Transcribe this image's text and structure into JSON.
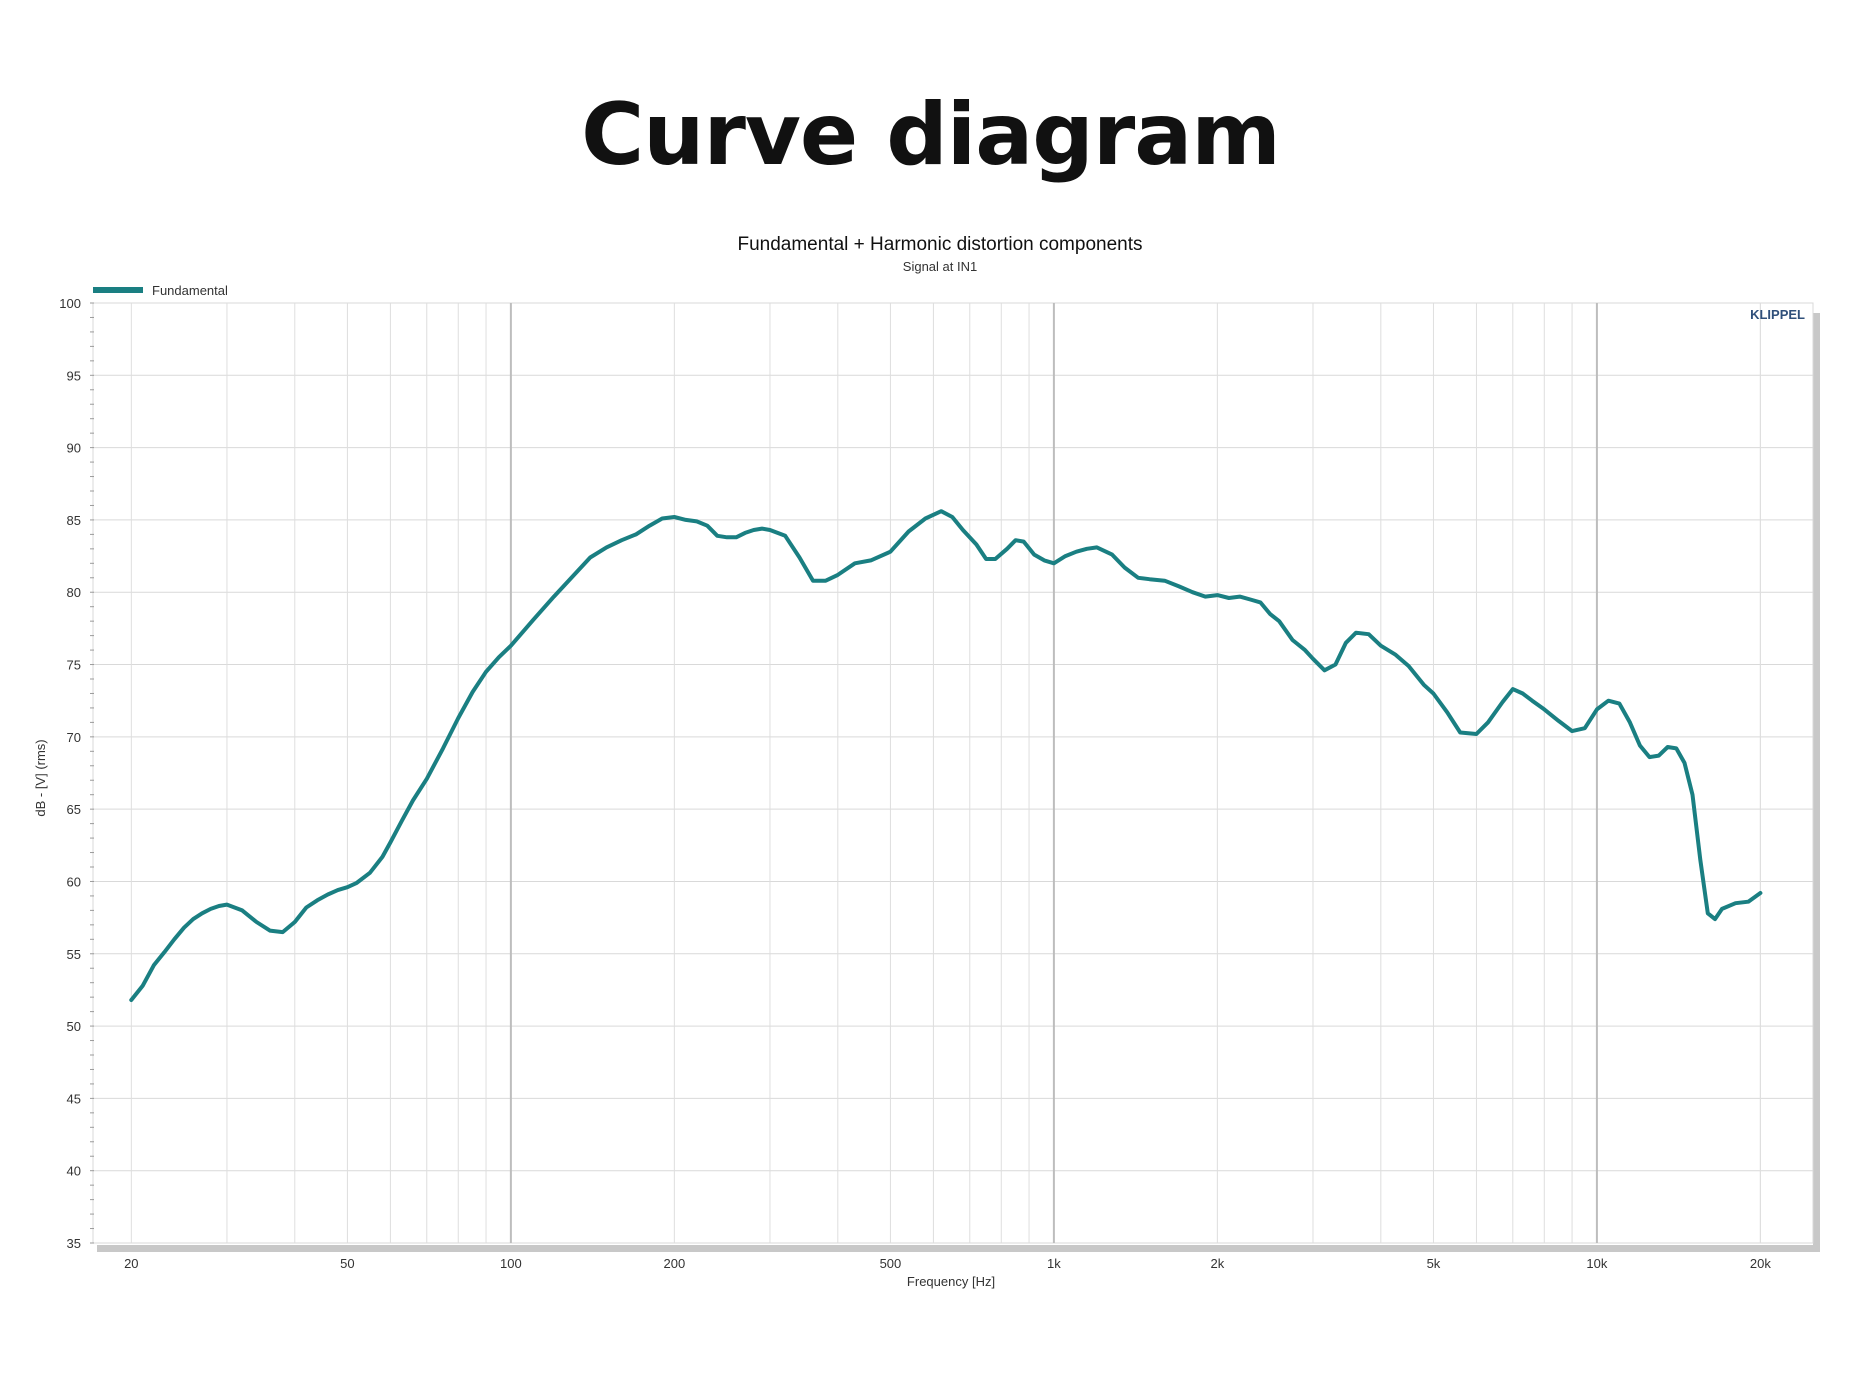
{
  "page": {
    "title": "Curve diagram"
  },
  "chart_data": {
    "type": "line",
    "title": "Fundamental + Harmonic distortion components",
    "subtitle": "Signal at IN1",
    "xlabel": "Frequency [Hz]",
    "ylabel": "dB - [V] (rms)",
    "x_scale": "log",
    "xlim": [
      17,
      25000
    ],
    "ylim": [
      35,
      100
    ],
    "grid": true,
    "legend_position": "top-left",
    "watermark": "KLIPPEL",
    "x_ticks": [
      {
        "value": 20,
        "label": "20"
      },
      {
        "value": 50,
        "label": "50"
      },
      {
        "value": 100,
        "label": "100"
      },
      {
        "value": 200,
        "label": "200"
      },
      {
        "value": 500,
        "label": "500"
      },
      {
        "value": 1000,
        "label": "1k"
      },
      {
        "value": 2000,
        "label": "2k"
      },
      {
        "value": 5000,
        "label": "5k"
      },
      {
        "value": 10000,
        "label": "10k"
      },
      {
        "value": 20000,
        "label": "20k"
      }
    ],
    "y_ticks": [
      100,
      95,
      90,
      85,
      80,
      75,
      70,
      65,
      60,
      55,
      50,
      45,
      40,
      35
    ],
    "series": [
      {
        "name": "Fundamental",
        "color": "#1a7f82",
        "x": [
          20,
          21,
          22,
          23,
          24,
          25,
          26,
          27,
          28,
          29,
          30,
          32,
          34,
          36,
          38,
          40,
          42,
          44,
          46,
          48,
          50,
          52,
          55,
          58,
          60,
          63,
          66,
          70,
          75,
          80,
          85,
          90,
          95,
          100,
          110,
          120,
          130,
          140,
          150,
          160,
          170,
          180,
          190,
          200,
          210,
          220,
          230,
          240,
          250,
          260,
          270,
          280,
          290,
          300,
          320,
          340,
          360,
          380,
          400,
          430,
          460,
          500,
          540,
          580,
          620,
          650,
          680,
          720,
          750,
          780,
          820,
          850,
          880,
          920,
          960,
          1000,
          1050,
          1100,
          1150,
          1200,
          1280,
          1350,
          1430,
          1500,
          1600,
          1700,
          1800,
          1900,
          2000,
          2100,
          2200,
          2300,
          2400,
          2500,
          2600,
          2750,
          2900,
          3000,
          3150,
          3300,
          3450,
          3600,
          3800,
          4000,
          4250,
          4500,
          4800,
          5000,
          5300,
          5600,
          6000,
          6300,
          6700,
          7000,
          7300,
          7600,
          8000,
          8500,
          9000,
          9500,
          10000,
          10500,
          11000,
          11500,
          12000,
          12500,
          13000,
          13500,
          14000,
          14500,
          15000,
          15500,
          16000,
          16500,
          17000,
          18000,
          19000,
          20000
        ],
        "y": [
          51.8,
          52.8,
          54.2,
          55.1,
          56.0,
          56.8,
          57.4,
          57.8,
          58.1,
          58.3,
          58.4,
          58.0,
          57.2,
          56.6,
          56.5,
          57.2,
          58.2,
          58.7,
          59.1,
          59.4,
          59.6,
          59.9,
          60.6,
          61.7,
          62.7,
          64.2,
          65.6,
          67.1,
          69.2,
          71.3,
          73.1,
          74.5,
          75.5,
          76.3,
          78.1,
          79.7,
          81.1,
          82.4,
          83.1,
          83.6,
          84.0,
          84.6,
          85.1,
          85.2,
          85.0,
          84.9,
          84.6,
          83.9,
          83.8,
          83.8,
          84.1,
          84.3,
          84.4,
          84.3,
          83.9,
          82.4,
          80.8,
          80.8,
          81.2,
          82.0,
          82.2,
          82.8,
          84.2,
          85.1,
          85.6,
          85.2,
          84.3,
          83.3,
          82.3,
          82.3,
          83.0,
          83.6,
          83.5,
          82.6,
          82.2,
          82.0,
          82.5,
          82.8,
          83.0,
          83.1,
          82.6,
          81.7,
          81.0,
          80.9,
          80.8,
          80.4,
          80.0,
          79.7,
          79.8,
          79.6,
          79.7,
          79.5,
          79.3,
          78.5,
          78.0,
          76.7,
          76.0,
          75.4,
          74.6,
          75.0,
          76.5,
          77.2,
          77.1,
          76.3,
          75.7,
          74.9,
          73.6,
          73.0,
          71.7,
          70.3,
          70.2,
          71.0,
          72.4,
          73.3,
          73.0,
          72.5,
          71.9,
          71.1,
          70.4,
          70.6,
          71.9,
          72.5,
          72.3,
          71.0,
          69.4,
          68.6,
          68.7,
          69.3,
          69.2,
          68.2,
          66.0,
          61.5,
          57.8,
          57.4,
          58.1,
          58.5,
          58.6,
          59.2
        ]
      }
    ]
  }
}
